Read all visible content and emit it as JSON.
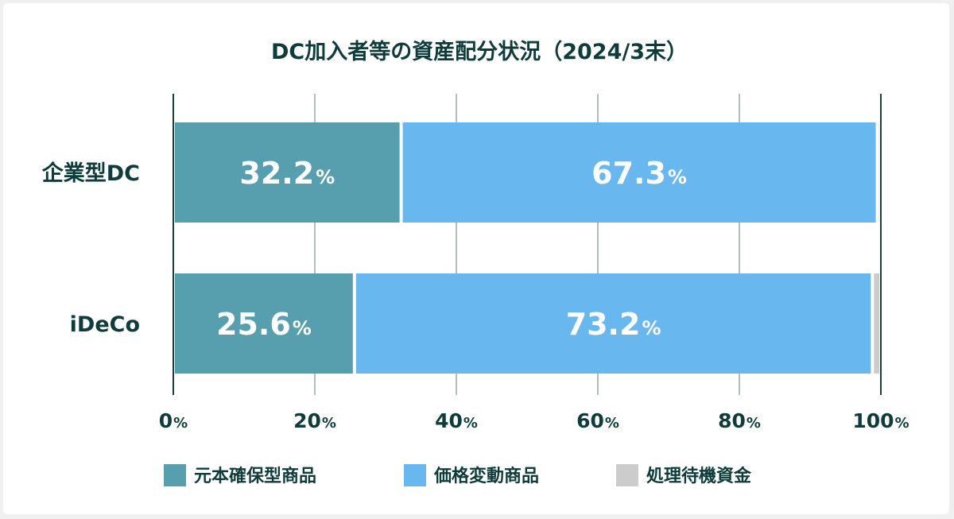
{
  "chart_data": {
    "type": "bar",
    "orientation": "horizontal",
    "stacked": true,
    "title": "DC加入者等の資産配分状況（2024/3末）",
    "categories": [
      "企業型DC",
      "iDeCo"
    ],
    "series": [
      {
        "name": "元本確保型商品",
        "color": "#579fae",
        "values": [
          32.2,
          25.6
        ],
        "labels": [
          "32.2",
          "25.6"
        ]
      },
      {
        "name": "価格変動商品",
        "color": "#68b7ef",
        "values": [
          67.3,
          73.2
        ],
        "labels": [
          "67.3",
          "73.2"
        ]
      },
      {
        "name": "処理待機資金",
        "color": "#cccccc",
        "values": [
          0.5,
          1.2
        ],
        "labels": [
          "",
          ""
        ]
      }
    ],
    "unit": "%",
    "xlim": [
      0,
      100
    ],
    "xticks": [
      "0",
      "20",
      "40",
      "60",
      "80",
      "100"
    ],
    "xtick_values": [
      0,
      20,
      40,
      60,
      80,
      100
    ],
    "grid": true,
    "legend_position": "bottom"
  }
}
